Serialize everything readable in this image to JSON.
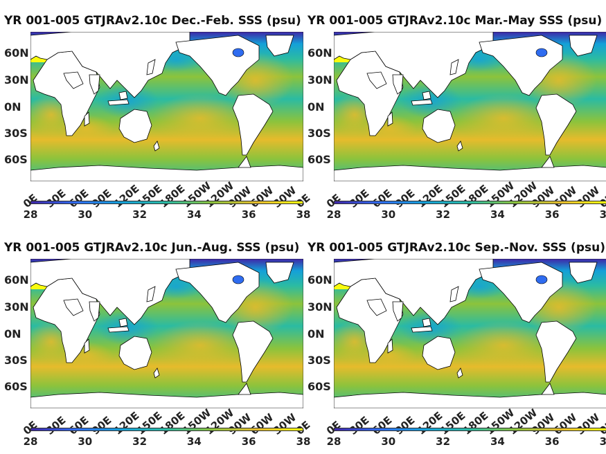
{
  "panels": [
    {
      "title": "YR 001-005 GTJRAv2.10c Dec.-Feb. SSS (psu)"
    },
    {
      "title": "YR 001-005 GTJRAv2.10c Mar.-May SSS (psu)"
    },
    {
      "title": "YR 001-005 GTJRAv2.10c Jun.-Aug. SSS (psu)"
    },
    {
      "title": "YR 001-005 GTJRAv2.10c Sep.-Nov. SSS (psu)"
    }
  ],
  "lat_ticks": [
    "60N",
    "30N",
    "0N",
    "30S",
    "60S"
  ],
  "lon_ticks": [
    "0E",
    "30E",
    "60E",
    "90E",
    "120E",
    "150E",
    "180E",
    "150W",
    "120W",
    "90W",
    "60W",
    "30W",
    "0E"
  ],
  "colorbar": {
    "ticks": [
      "28",
      "30",
      "32",
      "34",
      "36",
      "38"
    ],
    "range": [
      28,
      38
    ],
    "colors": [
      "#3e26a8",
      "#2f6cf0",
      "#14a0d8",
      "#2bbba2",
      "#8cc33c",
      "#e6bb2c",
      "#f9fb0e"
    ]
  }
}
